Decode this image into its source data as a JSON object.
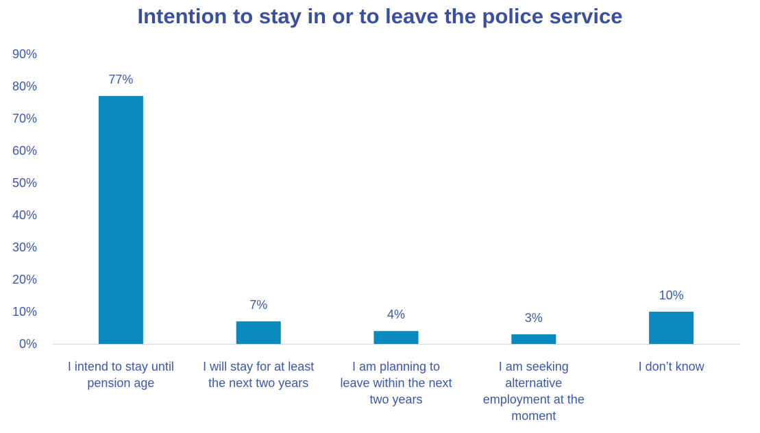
{
  "chart_data": {
    "type": "bar",
    "title": "Intention to stay in or to leave the police service",
    "xlabel": "",
    "ylabel": "",
    "categories": [
      [
        "I intend to stay until",
        "pension age"
      ],
      [
        "I will stay for at least",
        "the next two years"
      ],
      [
        "I am planning to",
        "leave within the next",
        "two years"
      ],
      [
        "I am seeking",
        "alternative",
        "employment at the",
        "moment"
      ],
      [
        "I don’t know"
      ]
    ],
    "values": [
      77,
      7,
      4,
      3,
      10
    ],
    "data_labels": [
      "77%",
      "7%",
      "4%",
      "3%",
      "10%"
    ],
    "ylim": [
      0,
      90
    ],
    "yticks": [
      "0%",
      "10%",
      "20%",
      "30%",
      "40%",
      "50%",
      "60%",
      "70%",
      "80%",
      "90%"
    ],
    "grid": false,
    "legend": "none",
    "bar_color": "#0a89bf",
    "text_color": "#3b57b3",
    "title_color": "#3b4f9c"
  }
}
